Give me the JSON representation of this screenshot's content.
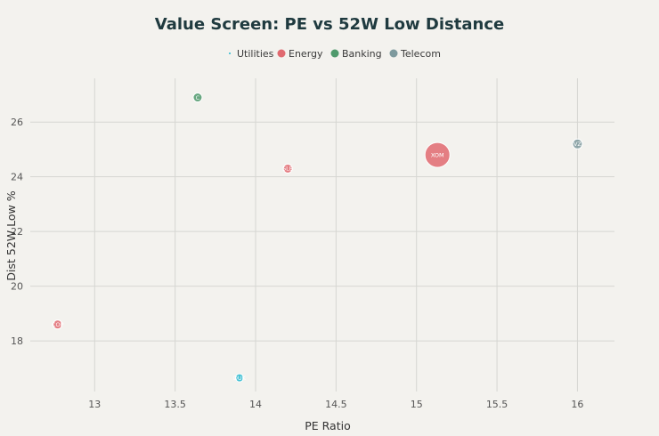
{
  "chart_data": {
    "type": "scatter",
    "title": "Value Screen: PE vs 52W Low Distance",
    "xlabel": "PE Ratio",
    "ylabel": "Dist 52W Low %",
    "xlim": [
      12.6,
      16.23
    ],
    "ylim": [
      16.15,
      27.6
    ],
    "xticks": [
      13,
      13.5,
      14,
      14.5,
      15,
      15.5,
      16
    ],
    "yticks": [
      18,
      20,
      22,
      24,
      26
    ],
    "grid": true,
    "legend_position": "top-center",
    "legend": [
      {
        "name": "Utilities",
        "color": "#26b8cf"
      },
      {
        "name": "Energy",
        "color": "#e06a70"
      },
      {
        "name": "Banking",
        "color": "#4f9a6c"
      },
      {
        "name": "Telecom",
        "color": "#7e9a9e"
      }
    ],
    "points": [
      {
        "sector": "Banking",
        "x": 13.64,
        "y": 26.9,
        "size": 5,
        "label": "C"
      },
      {
        "sector": "Energy",
        "x": 14.2,
        "y": 24.3,
        "size": 5,
        "label": "SLB"
      },
      {
        "sector": "Energy",
        "x": 15.13,
        "y": 24.8,
        "size": 14,
        "label": "XOM"
      },
      {
        "sector": "Telecom",
        "x": 16.0,
        "y": 25.2,
        "size": 5.5,
        "label": "VZ"
      },
      {
        "sector": "Energy",
        "x": 12.77,
        "y": 18.6,
        "size": 5,
        "label": "COP"
      },
      {
        "sector": "Utilities",
        "x": 13.9,
        "y": 16.65,
        "size": 4.5,
        "label": "DUK"
      }
    ]
  }
}
